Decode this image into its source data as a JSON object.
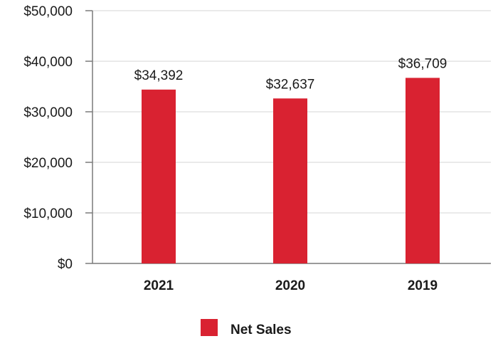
{
  "chart_data": {
    "type": "bar",
    "title": "",
    "xlabel": "",
    "ylabel": "",
    "categories": [
      "2021",
      "2020",
      "2019"
    ],
    "series": [
      {
        "name": "Net Sales",
        "values": [
          34392,
          32637,
          36709
        ],
        "data_labels": [
          "$34,392",
          "$32,637",
          "$36,709"
        ],
        "color": "#d92231"
      }
    ],
    "ylim": [
      0,
      50000
    ],
    "yticks": [
      0,
      10000,
      20000,
      30000,
      40000,
      50000
    ],
    "ytick_labels": [
      "$0",
      "$10,000",
      "$20,000",
      "$30,000",
      "$40,000",
      "$50,000"
    ],
    "grid": true,
    "legend_position": "bottom-center"
  },
  "colors": {
    "bar": "#d92231",
    "grid": "#e3e3e3",
    "axis": "#7a7a7a",
    "text": "#1a1a1a"
  }
}
